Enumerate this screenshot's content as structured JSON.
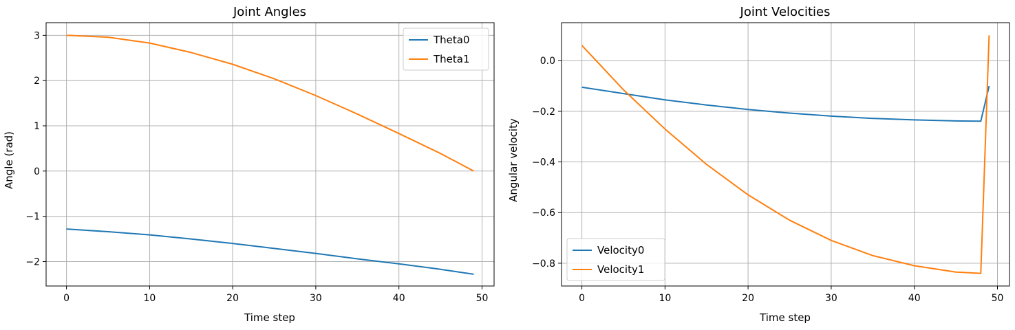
{
  "chart_data": [
    {
      "type": "line",
      "title": "Joint Angles",
      "xlabel": "Time step",
      "ylabel": "Angle (rad)",
      "xlim": [
        -2.45,
        51.45
      ],
      "ylim": [
        -2.54,
        3.28
      ],
      "xticks": [
        0,
        10,
        20,
        30,
        40,
        50
      ],
      "xtick_labels": [
        "0",
        "10",
        "20",
        "30",
        "40",
        "50"
      ],
      "yticks": [
        -2,
        -1,
        0,
        1,
        2,
        3
      ],
      "ytick_labels": [
        "−2",
        "−1",
        "0",
        "1",
        "2",
        "3"
      ],
      "grid": true,
      "legend_position": "upper right",
      "series": [
        {
          "name": "Theta0",
          "color": "#1f77b4",
          "x": [
            0,
            5,
            10,
            15,
            20,
            25,
            30,
            35,
            40,
            45,
            49
          ],
          "y": [
            -1.28,
            -1.34,
            -1.41,
            -1.5,
            -1.6,
            -1.71,
            -1.82,
            -1.94,
            -2.05,
            -2.17,
            -2.28
          ]
        },
        {
          "name": "Theta1",
          "color": "#ff7f0e",
          "x": [
            0,
            5,
            10,
            15,
            20,
            25,
            30,
            35,
            40,
            45,
            49
          ],
          "y": [
            3.0,
            2.96,
            2.83,
            2.62,
            2.36,
            2.04,
            1.67,
            1.26,
            0.83,
            0.39,
            0.0
          ]
        }
      ]
    },
    {
      "type": "line",
      "title": "Joint Velocities",
      "xlabel": "Time step",
      "ylabel": "Angular velocity",
      "xlim": [
        -2.45,
        51.45
      ],
      "ylim": [
        -0.89,
        0.15
      ],
      "xticks": [
        0,
        10,
        20,
        30,
        40,
        50
      ],
      "xtick_labels": [
        "0",
        "10",
        "20",
        "30",
        "40",
        "50"
      ],
      "yticks": [
        -0.8,
        -0.6,
        -0.4,
        -0.2,
        0.0
      ],
      "ytick_labels": [
        "−0.8",
        "−0.6",
        "−0.4",
        "−0.2",
        "0.0"
      ],
      "grid": true,
      "legend_position": "lower left",
      "series": [
        {
          "name": "Velocity0",
          "color": "#1f77b4",
          "x": [
            0,
            5,
            10,
            15,
            20,
            25,
            30,
            35,
            40,
            45,
            48,
            49
          ],
          "y": [
            -0.105,
            -0.13,
            -0.155,
            -0.175,
            -0.193,
            -0.207,
            -0.219,
            -0.228,
            -0.234,
            -0.238,
            -0.239,
            -0.1
          ]
        },
        {
          "name": "Velocity1",
          "color": "#ff7f0e",
          "x": [
            0,
            5,
            10,
            15,
            20,
            25,
            30,
            35,
            40,
            45,
            48,
            49
          ],
          "y": [
            0.06,
            -0.115,
            -0.27,
            -0.41,
            -0.53,
            -0.63,
            -0.71,
            -0.77,
            -0.81,
            -0.835,
            -0.84,
            0.1
          ]
        }
      ]
    }
  ]
}
